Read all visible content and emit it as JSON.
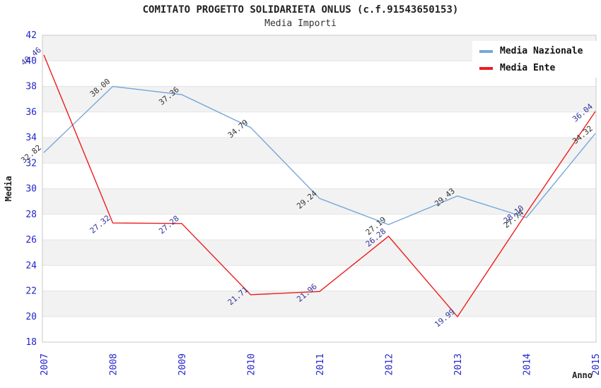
{
  "header": {
    "title": "COMITATO PROGETTO SOLIDARIETA ONLUS (c.f.91543650153)",
    "subtitle": "Media Importi"
  },
  "chart_data": {
    "type": "line",
    "x": [
      "2007",
      "2008",
      "2009",
      "2010",
      "2011",
      "2012",
      "2013",
      "2014",
      "2015"
    ],
    "series": [
      {
        "name": "Media Nazionale",
        "color": "#74a7dc",
        "label_color": "#333333",
        "values": [
          32.82,
          38.0,
          37.36,
          34.79,
          29.24,
          27.19,
          29.43,
          27.74,
          34.32
        ],
        "point_labels": [
          "32.82",
          "38.00",
          "37.36",
          "34.79",
          "29.24",
          "27.19",
          "29.43",
          "27.74",
          "34.32"
        ]
      },
      {
        "name": "Media Ente",
        "color": "#ee1c1c",
        "label_color": "#333399",
        "values": [
          40.46,
          27.32,
          27.28,
          21.71,
          21.96,
          26.28,
          19.99,
          28.1,
          36.04
        ],
        "point_labels": [
          "40.46",
          "27.32",
          "27.28",
          "21.71",
          "21.96",
          "26.28",
          "19.99",
          "28.10",
          "36.04"
        ]
      }
    ],
    "xlabel": "Anno",
    "ylabel": "Media",
    "ylim": [
      18,
      42
    ],
    "ytick_step": 2,
    "y_ticks": [
      "18",
      "20",
      "22",
      "24",
      "26",
      "28",
      "30",
      "32",
      "34",
      "36",
      "38",
      "40",
      "42"
    ],
    "grid": "horizontal gridlines with alternating gray bands",
    "legend_position": "top-right",
    "styles": {
      "band_fill": "#f2f2f2",
      "gridline_color": "#e4e4e4",
      "border_color": "#c9c9c9",
      "tick_label_color": "#2424cc",
      "axis_title_color": "#222222"
    }
  }
}
